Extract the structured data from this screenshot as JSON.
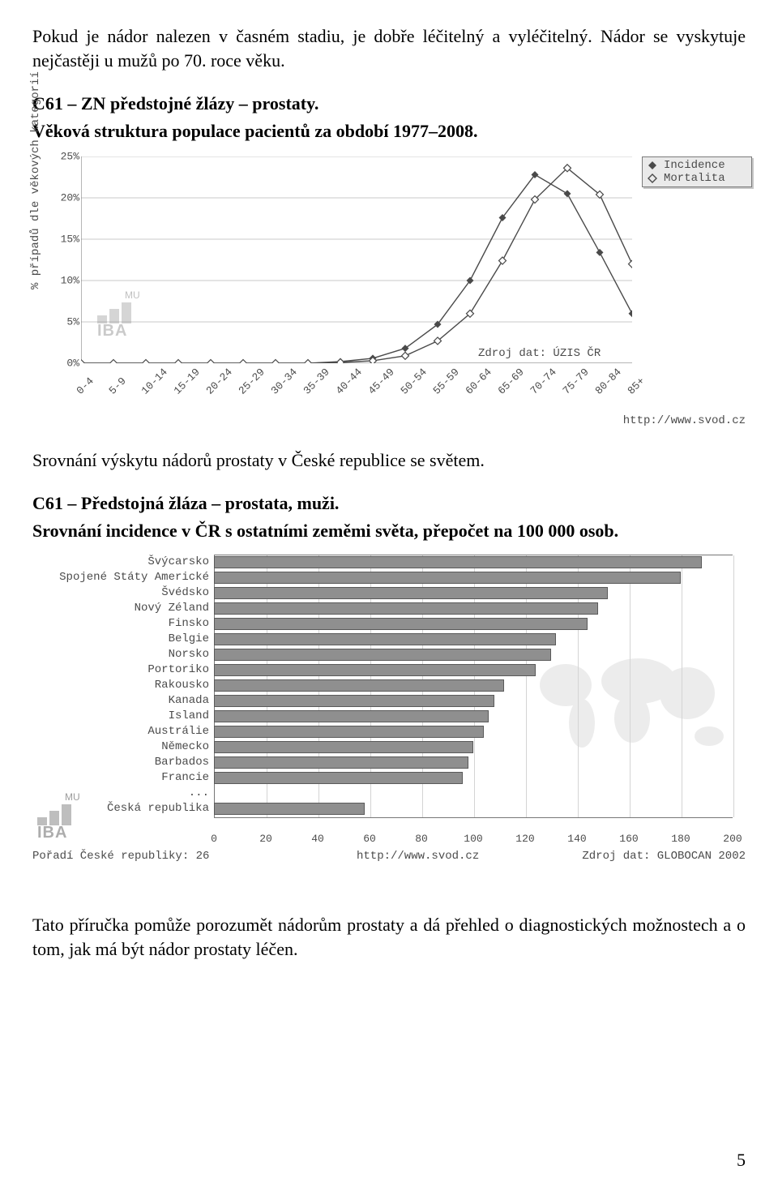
{
  "text": {
    "intro": "Pokud je nádor nalezen v časném stadiu, je dobře léčitelný a vyléčitelný. Nádor se vyskytuje nejčastěji u mužů po 70. roce věku.",
    "chart1_title1": "C61 – ZN předstojné žlázy – prostaty.",
    "chart1_title2": "Věková struktura populace pacientů za období 1977–2008.",
    "between": "Srovnání výskytu nádorů prostaty v České republice se světem.",
    "chart2_title1": "C61 – Předstojná žláza – prostata, muži.",
    "chart2_title2": "Srovnání incidence v ČR s ostatními zeměmi světa, přepočet na 100 000 osob.",
    "outro": "Tato příručka pomůže porozumět nádorům prostaty a dá přehled o diagnostických možnostech a o tom, jak má být nádor prostaty léčen.",
    "page_number": "5"
  },
  "line_chart": {
    "type": "line",
    "ylabel": "% případů dle věkových kategorií",
    "ytick_labels": [
      "0%",
      "5%",
      "10%",
      "15%",
      "20%",
      "25%"
    ],
    "ytick_values": [
      0,
      5,
      10,
      15,
      20,
      25
    ],
    "ylim": [
      0,
      25
    ],
    "xtick_labels": [
      "0-4",
      "5-9",
      "10-14",
      "15-19",
      "20-24",
      "25-29",
      "30-34",
      "35-39",
      "40-44",
      "45-49",
      "50-54",
      "55-59",
      "60-64",
      "65-69",
      "70-74",
      "75-79",
      "80-84",
      "85+"
    ],
    "grid_color": "#c8c8c8",
    "axis_color": "#6e6e6e",
    "background_color": "#ffffff",
    "label_fontsize": 13,
    "legend": {
      "items": [
        {
          "label": "Incidence",
          "marker": "diamond-filled"
        },
        {
          "label": "Mortalita",
          "marker": "diamond-outline"
        }
      ],
      "bg": "#eaeaea",
      "border": "#7a7a7a"
    },
    "series": [
      {
        "name": "Incidence",
        "color": "#4a4a4a",
        "line_width": 1.4,
        "marker": "diamond-filled",
        "values": [
          0,
          0,
          0,
          0,
          0,
          0,
          0,
          0,
          0.2,
          0.6,
          1.8,
          4.7,
          10.0,
          17.6,
          22.8,
          20.5,
          13.4,
          6.0
        ]
      },
      {
        "name": "Mortalita",
        "color": "#4a4a4a",
        "line_width": 1.4,
        "marker": "diamond-outline",
        "values": [
          0,
          0,
          0,
          0,
          0,
          0,
          0,
          0,
          0.1,
          0.3,
          0.9,
          2.7,
          6.0,
          12.4,
          19.8,
          23.6,
          20.4,
          12.0
        ]
      }
    ],
    "source_label": "Zdroj dat: ÚZIS ČR",
    "url": "http://www.svod.cz",
    "watermark": "IBA",
    "watermark_sub": "MU"
  },
  "bar_chart": {
    "type": "hbar",
    "xmax": 200,
    "xtick_step": 20,
    "xtick_labels": [
      "0",
      "20",
      "40",
      "60",
      "80",
      "100",
      "120",
      "140",
      "160",
      "180",
      "200"
    ],
    "axis_color": "#777777",
    "grid_color": "#d4d4d4",
    "bar_color": "#8f8f8f",
    "bar_border": "#5a5a5a",
    "label_fontsize": 14,
    "categories": [
      {
        "label": "Švýcarsko",
        "value": 188
      },
      {
        "label": "Spojené Státy Americké",
        "value": 180
      },
      {
        "label": "Švédsko",
        "value": 152
      },
      {
        "label": "Nový Zéland",
        "value": 148
      },
      {
        "label": "Finsko",
        "value": 144
      },
      {
        "label": "Belgie",
        "value": 132
      },
      {
        "label": "Norsko",
        "value": 130
      },
      {
        "label": "Portoriko",
        "value": 124
      },
      {
        "label": "Rakousko",
        "value": 112
      },
      {
        "label": "Kanada",
        "value": 108
      },
      {
        "label": "Island",
        "value": 106
      },
      {
        "label": "Austrálie",
        "value": 104
      },
      {
        "label": "Německo",
        "value": 100
      },
      {
        "label": "Barbados",
        "value": 98
      },
      {
        "label": "Francie",
        "value": 96
      },
      {
        "label": "...",
        "value": null
      },
      {
        "label": "Česká republika",
        "value": 58
      }
    ],
    "footer_left": "Pořadí České republiky: 26",
    "footer_center": "http://www.svod.cz",
    "footer_right": "Zdroj dat: GLOBOCAN 2002",
    "watermark": "IBA",
    "watermark_sub": "MU"
  }
}
